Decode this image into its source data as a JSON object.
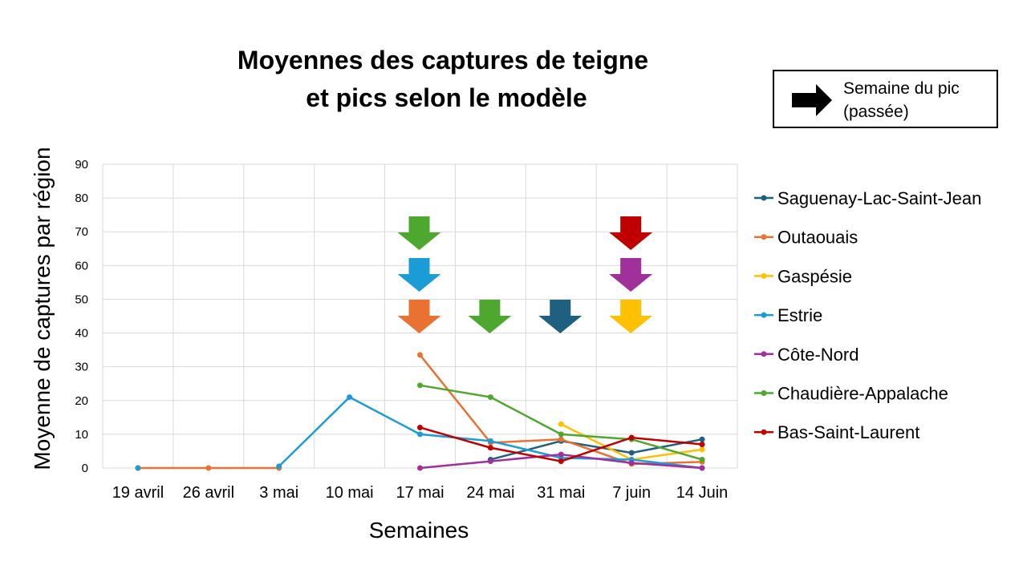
{
  "chart_data": {
    "type": "line",
    "title": "Moyennes des captures de teigne et pics selon le modèle",
    "x_label": "Semaines",
    "y_label": "Moyenne de captures par région",
    "peak_note": "Semaine du pic (passée)",
    "categories": [
      "19 avril",
      "26 avril",
      "3 mai",
      "10 mai",
      "17 mai",
      "24 mai",
      "31 mai",
      "7 juin",
      "14 Juin"
    ],
    "ylim": [
      0,
      90
    ],
    "yticks": [
      0,
      10,
      20,
      30,
      40,
      50,
      60,
      70,
      80,
      90
    ],
    "grid": true,
    "series": [
      {
        "name": "Saguenay-Lac-Saint-Jean",
        "color": "#1f5f7f",
        "values": [
          null,
          null,
          null,
          null,
          null,
          2.5,
          8,
          4.5,
          8.5
        ],
        "peaks": [
          "31 mai"
        ]
      },
      {
        "name": "Outaouais",
        "color": "#e97132",
        "values": [
          0,
          0,
          0,
          null,
          33.5,
          7.5,
          8.5,
          1.2,
          1.8
        ],
        "peaks": [
          "17 mai"
        ]
      },
      {
        "name": "Gaspésie",
        "color": "#ffc000",
        "values": [
          null,
          null,
          null,
          null,
          null,
          null,
          13,
          2.5,
          5.5
        ],
        "peaks": [
          "7 juin"
        ]
      },
      {
        "name": "Estrie",
        "color": "#1c9cd6",
        "values": [
          0,
          null,
          0.5,
          21,
          10,
          8,
          3,
          2.5,
          0
        ],
        "peaks": [
          "17 mai"
        ]
      },
      {
        "name": "Côte-Nord",
        "color": "#a0309a",
        "values": [
          null,
          null,
          null,
          null,
          0,
          2,
          4,
          1.5,
          0
        ],
        "peaks": [
          "7 juin"
        ]
      },
      {
        "name": "Chaudière-Appalache",
        "color": "#4ea72e",
        "values": [
          null,
          null,
          null,
          null,
          24.5,
          21,
          10,
          8.5,
          2.5
        ],
        "peaks": [
          "17 mai",
          "24 mai"
        ]
      },
      {
        "name": "Bas-Saint-Laurent",
        "color": "#c00000",
        "values": [
          null,
          null,
          null,
          null,
          12,
          6,
          2,
          9,
          7
        ],
        "peaks": [
          "7 juin"
        ]
      }
    ]
  }
}
